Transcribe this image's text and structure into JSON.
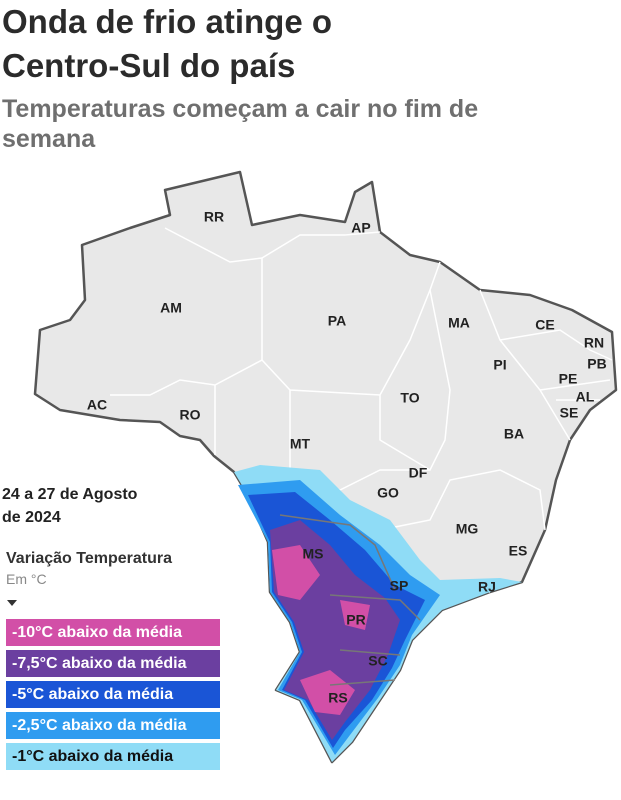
{
  "header": {
    "title": "Onda de frio atinge o Centro-Sul do país",
    "subtitle": "Temperaturas começam a cair no fim de semana"
  },
  "map": {
    "states": [
      {
        "label": "RR"
      },
      {
        "label": "AP"
      },
      {
        "label": "AM"
      },
      {
        "label": "PA"
      },
      {
        "label": "MA"
      },
      {
        "label": "CE"
      },
      {
        "label": "RN"
      },
      {
        "label": "PB"
      },
      {
        "label": "PI"
      },
      {
        "label": "PE"
      },
      {
        "label": "AL"
      },
      {
        "label": "SE"
      },
      {
        "label": "AC"
      },
      {
        "label": "RO"
      },
      {
        "label": "TO"
      },
      {
        "label": "BA"
      },
      {
        "label": "MT"
      },
      {
        "label": "DF"
      },
      {
        "label": "GO"
      },
      {
        "label": "MG"
      },
      {
        "label": "ES"
      },
      {
        "label": "MS"
      },
      {
        "label": "SP"
      },
      {
        "label": "RJ"
      },
      {
        "label": "PR"
      },
      {
        "label": "SC"
      },
      {
        "label": "RS"
      }
    ]
  },
  "legend": {
    "period": "24 a 27 de Agosto de 2024",
    "title": "Variação Temperatura",
    "unit": "Em °C",
    "items": [
      {
        "label": "-10°C abaixo da média",
        "color": "#d24fa7",
        "text_color": "#ffffff"
      },
      {
        "label": "-7,5°C abaixo da média",
        "color": "#6b3fa0",
        "text_color": "#ffffff"
      },
      {
        "label": "-5°C abaixo da média",
        "color": "#1a55d6",
        "text_color": "#ffffff"
      },
      {
        "label": "-2,5°C abaixo da média",
        "color": "#2f9cf0",
        "text_color": "#ffffff"
      },
      {
        "label": "-1°C abaixo da média",
        "color": "#8fdcf6",
        "text_color": "#111111"
      }
    ]
  }
}
